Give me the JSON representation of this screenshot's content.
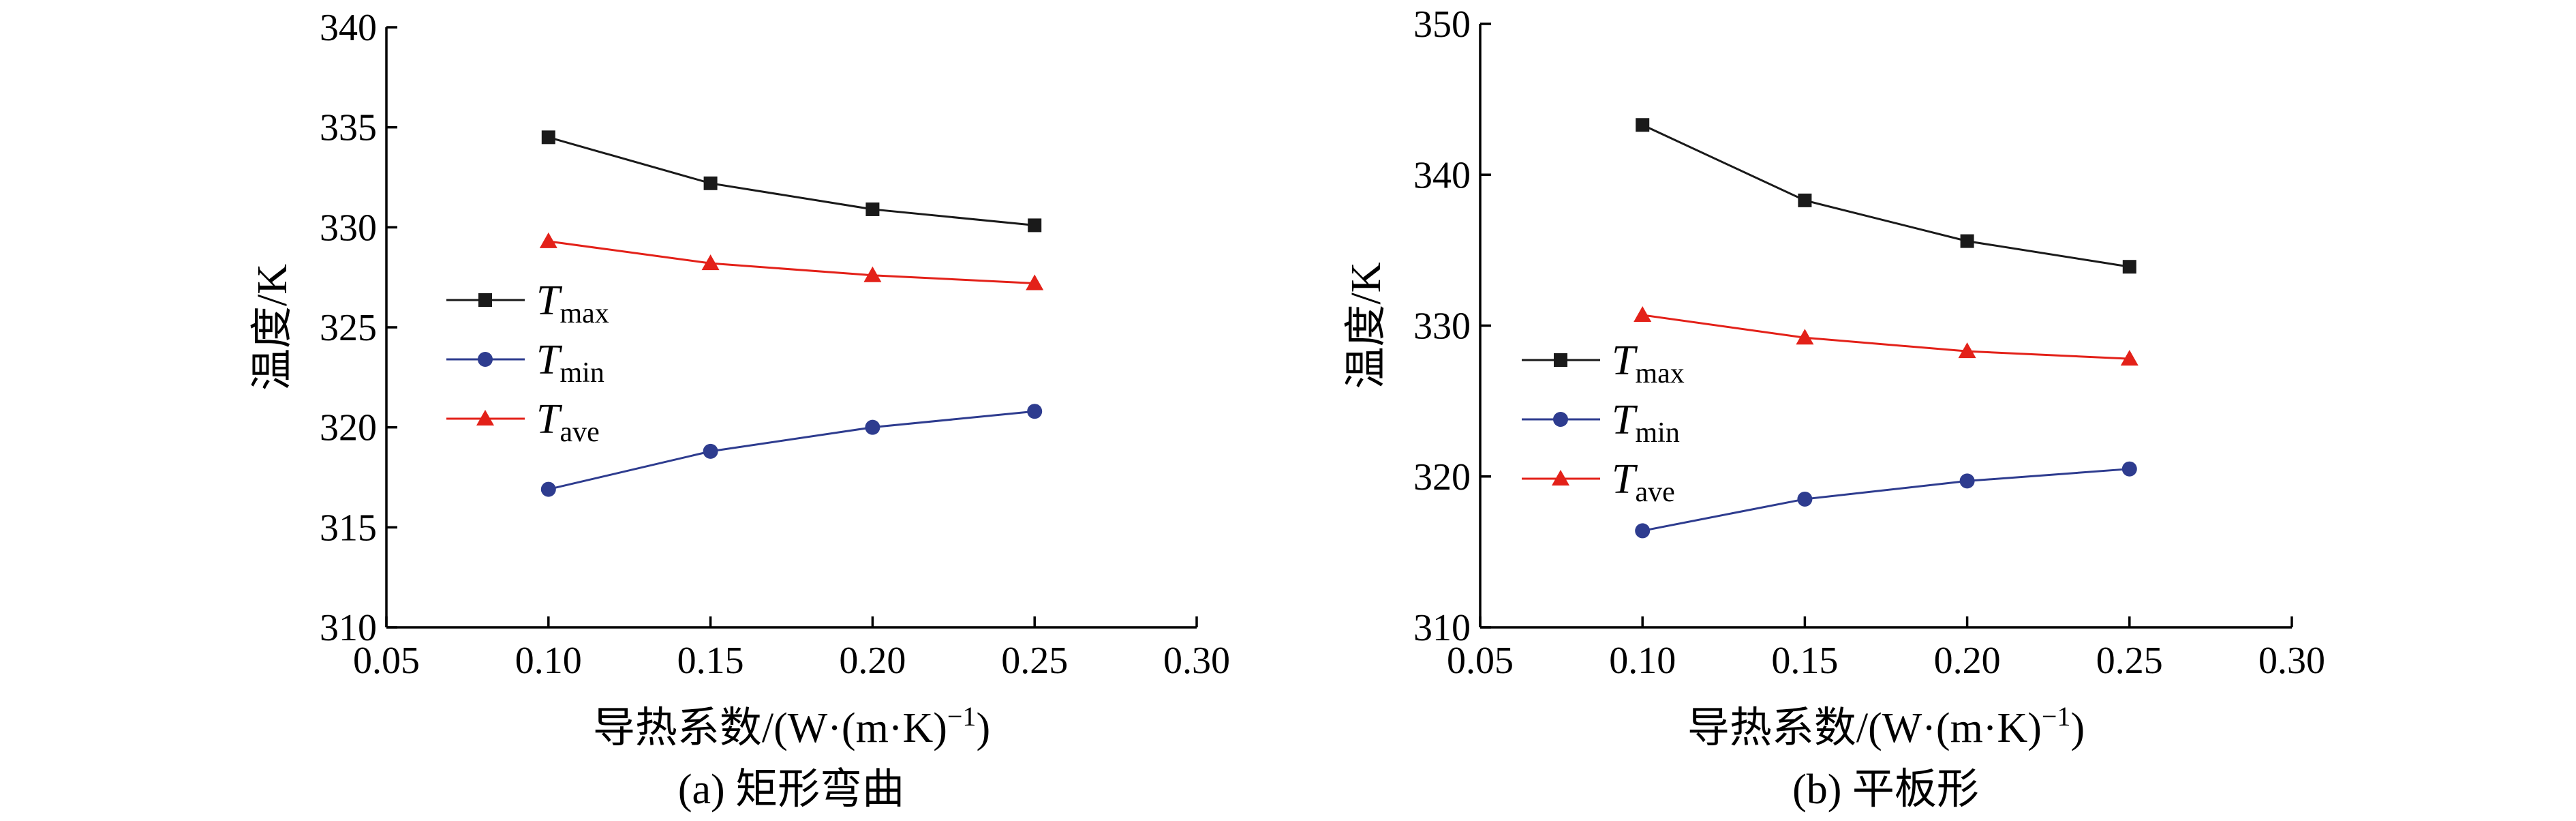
{
  "chart_data": [
    {
      "type": "line",
      "caption": "(a) 矩形弯曲",
      "ylabel": "温度/K",
      "xlabel": "导热系数/(W·(m·K)",
      "xlabel_sup": "−1",
      "xlabel_close": ")",
      "xlim": [
        0.05,
        0.3
      ],
      "ylim": [
        310,
        340
      ],
      "xticks": [
        "0.05",
        "0.10",
        "0.15",
        "0.20",
        "0.25",
        "0.30"
      ],
      "yticks": [
        "310",
        "315",
        "320",
        "325",
        "330",
        "335",
        "340"
      ],
      "x": [
        0.1,
        0.15,
        0.2,
        0.25
      ],
      "series": [
        {
          "name": "T",
          "sub": "max",
          "color": "#1a1a1a",
          "marker": "square",
          "values": [
            334.5,
            332.2,
            330.9,
            330.1
          ]
        },
        {
          "name": "T",
          "sub": "min",
          "color": "#2e3c8f",
          "marker": "circle",
          "values": [
            316.9,
            318.8,
            320.0,
            320.8
          ]
        },
        {
          "name": "T",
          "sub": "ave",
          "color": "#e32119",
          "marker": "triangle",
          "values": [
            329.3,
            328.2,
            327.6,
            327.2
          ]
        }
      ]
    },
    {
      "type": "line",
      "caption": "(b) 平板形",
      "ylabel": "温度/K",
      "xlabel": "导热系数/(W·(m·K)",
      "xlabel_sup": "−1",
      "xlabel_close": ")",
      "xlim": [
        0.05,
        0.3
      ],
      "ylim": [
        310,
        350
      ],
      "xticks": [
        "0.05",
        "0.10",
        "0.15",
        "0.20",
        "0.25",
        "0.30"
      ],
      "yticks": [
        "310",
        "320",
        "330",
        "340",
        "350"
      ],
      "x": [
        0.1,
        0.15,
        0.2,
        0.25
      ],
      "series": [
        {
          "name": "T",
          "sub": "max",
          "color": "#1a1a1a",
          "marker": "square",
          "values": [
            343.3,
            338.3,
            335.6,
            333.9
          ]
        },
        {
          "name": "T",
          "sub": "min",
          "color": "#2e3c8f",
          "marker": "circle",
          "values": [
            316.4,
            318.5,
            319.7,
            320.5
          ]
        },
        {
          "name": "T",
          "sub": "ave",
          "color": "#e32119",
          "marker": "triangle",
          "values": [
            330.7,
            329.2,
            328.3,
            327.8
          ]
        }
      ]
    }
  ]
}
